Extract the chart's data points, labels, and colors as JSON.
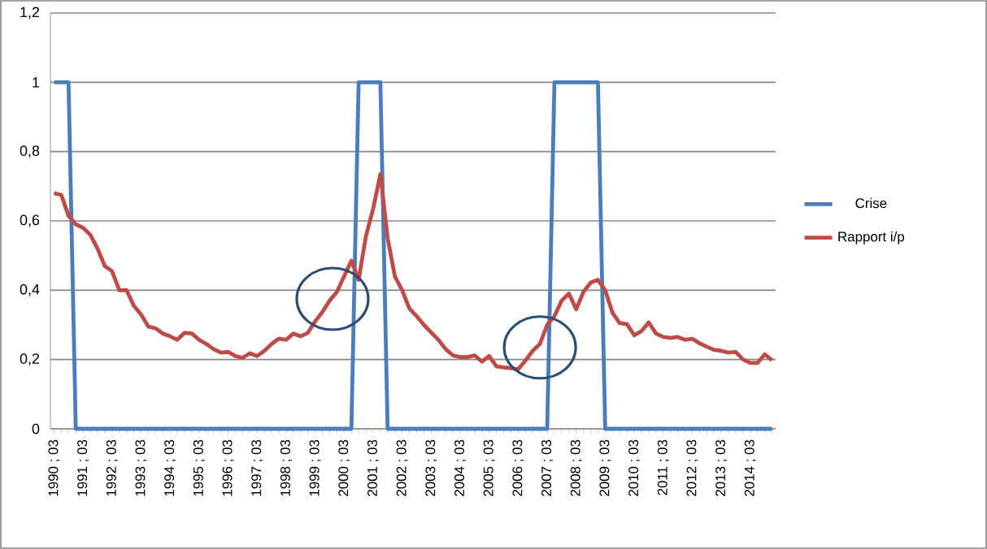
{
  "chart_data": {
    "type": "line",
    "categories": [
      "1990 ; 03",
      null,
      null,
      null,
      "1991 ; 03",
      null,
      null,
      null,
      "1992 ; 03",
      null,
      null,
      null,
      "1993 ; 03",
      null,
      null,
      null,
      "1994 ; 03",
      null,
      null,
      null,
      "1995 ; 03",
      null,
      null,
      null,
      "1996 ; 03",
      null,
      null,
      null,
      "1997 ; 03",
      null,
      null,
      null,
      "1998 ; 03",
      null,
      null,
      null,
      "1999 ; 03",
      null,
      null,
      null,
      "2000 ; 03",
      null,
      null,
      null,
      "2001 ; 03",
      null,
      null,
      null,
      "2002 ; 03",
      null,
      null,
      null,
      "2003 ; 03",
      null,
      null,
      null,
      "2004 ; 03",
      null,
      null,
      null,
      "2005 ; 03",
      null,
      null,
      null,
      "2006 ; 03",
      null,
      null,
      null,
      "2007 ; 03",
      null,
      null,
      null,
      "2008 ; 03",
      null,
      null,
      null,
      "2009 ; 03",
      null,
      null,
      null,
      "2010 ; 03",
      null,
      null,
      null,
      "2011 ; 03",
      null,
      null,
      null,
      "2012 ; 03",
      null,
      null,
      null,
      "2013 ; 03",
      null,
      null,
      null,
      "2014 ; 03",
      null,
      null,
      null
    ],
    "series": [
      {
        "name": "Crise",
        "color": "#4a7ebb",
        "values": [
          1,
          1,
          1,
          0,
          0,
          0,
          0,
          0,
          0,
          0,
          0,
          0,
          0,
          0,
          0,
          0,
          0,
          0,
          0,
          0,
          0,
          0,
          0,
          0,
          0,
          0,
          0,
          0,
          0,
          0,
          0,
          0,
          0,
          0,
          0,
          0,
          0,
          0,
          0,
          0,
          0,
          0,
          1,
          1,
          1,
          1,
          0,
          0,
          0,
          0,
          0,
          0,
          0,
          0,
          0,
          0,
          0,
          0,
          0,
          0,
          0,
          0,
          0,
          0,
          0,
          0,
          0,
          0,
          0,
          1,
          1,
          1,
          1,
          1,
          1,
          1,
          0,
          0,
          0,
          0,
          0,
          0,
          0,
          0,
          0,
          0,
          0,
          0,
          0,
          0,
          0,
          0,
          0,
          0,
          0,
          0,
          0,
          0,
          0,
          0
        ]
      },
      {
        "name": "Rapport i/p",
        "color": "#be4b48",
        "values": [
          0.68,
          0.675,
          0.615,
          0.59,
          0.58,
          0.56,
          0.52,
          0.47,
          0.455,
          0.4,
          0.4,
          0.355,
          0.33,
          0.295,
          0.29,
          0.275,
          0.267,
          0.257,
          0.277,
          0.275,
          0.257,
          0.245,
          0.23,
          0.22,
          0.222,
          0.21,
          0.205,
          0.218,
          0.21,
          0.225,
          0.245,
          0.26,
          0.257,
          0.275,
          0.267,
          0.277,
          0.31,
          0.337,
          0.37,
          0.395,
          0.44,
          0.485,
          0.43,
          0.555,
          0.635,
          0.735,
          0.55,
          0.44,
          0.4,
          0.347,
          0.325,
          0.3,
          0.278,
          0.257,
          0.23,
          0.212,
          0.207,
          0.207,
          0.212,
          0.194,
          0.21,
          0.18,
          0.177,
          0.175,
          0.172,
          0.197,
          0.225,
          0.245,
          0.3,
          0.325,
          0.37,
          0.39,
          0.345,
          0.395,
          0.422,
          0.43,
          0.4,
          0.335,
          0.305,
          0.302,
          0.27,
          0.282,
          0.307,
          0.275,
          0.265,
          0.262,
          0.265,
          0.257,
          0.26,
          0.247,
          0.237,
          0.228,
          0.225,
          0.22,
          0.222,
          0.2,
          0.19,
          0.19,
          0.215,
          0.198
        ]
      }
    ],
    "ylim": [
      0,
      1.2
    ],
    "yticks": [
      0,
      {
        "value": 0.2,
        "label": "0,2"
      },
      {
        "value": 0.4,
        "label": "0,4"
      },
      {
        "value": 0.6,
        "label": "0,6"
      },
      {
        "value": 0.8,
        "label": "0,8"
      },
      1,
      {
        "value": 1.2,
        "label": "1,2"
      }
    ],
    "grid": "y",
    "legend": "right"
  }
}
